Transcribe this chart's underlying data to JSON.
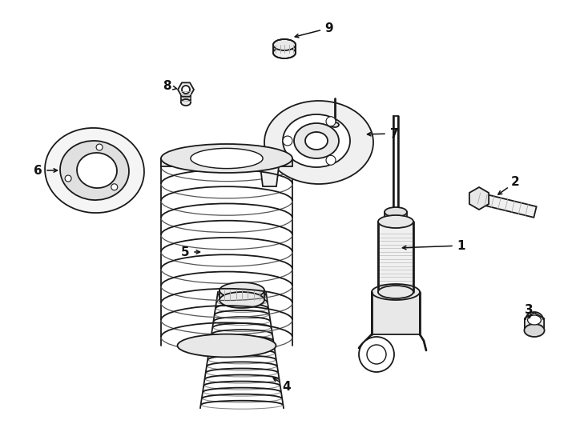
{
  "bg_color": "#ffffff",
  "lc": "#1a1a1a",
  "lw": 1.3,
  "fig_w": 7.34,
  "fig_h": 5.4,
  "dpi": 100,
  "label_fs": 11
}
